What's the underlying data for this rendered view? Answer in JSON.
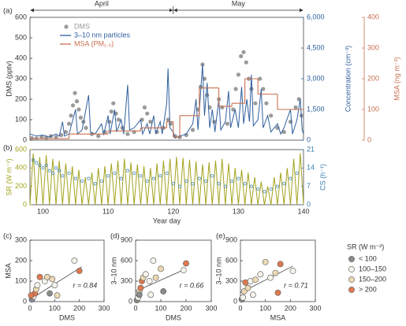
{
  "chart_data": [
    {
      "type": "line",
      "label": "(a)",
      "annotations": [
        "April",
        "May"
      ],
      "xlim": [
        98,
        140
      ],
      "ylim": [
        0,
        600
      ],
      "yticks": [
        0,
        100,
        200,
        300,
        400,
        500,
        600
      ],
      "ylabel": "DMS (pptv)",
      "y2lim": [
        0,
        6000
      ],
      "y2ticks": [
        0,
        {
          "value": 1500,
          "label": "1,500"
        },
        {
          "value": 3000,
          "label": "3,000"
        },
        {
          "value": 4500,
          "label": "4,500"
        },
        {
          "value": 6000,
          "label": "6,000"
        }
      ],
      "y2label": "Concentration (cm⁻³)",
      "y3lim": [
        0,
        400
      ],
      "y3ticks": [
        0,
        100,
        200,
        300,
        400
      ],
      "y3label": "MSA (ng m⁻³)",
      "series": [
        {
          "name": "DMS",
          "color": "#9a9a9a",
          "style": "points",
          "marker": "filled",
          "axis": "y",
          "x": [
            98.3,
            99,
            99.8,
            100.5,
            101.2,
            102,
            102.8,
            103.5,
            104,
            104.3,
            104.6,
            104.9,
            105.2,
            105.5,
            105.8,
            106.2,
            106.6,
            107.5,
            108.5,
            109.5,
            110.2,
            110.5,
            110.8,
            111.2,
            111.6,
            112.2,
            113,
            114,
            115.2,
            115.6,
            116,
            116.5,
            117.5,
            118.5,
            119.2,
            119.6,
            120.3,
            121,
            122,
            123,
            123.8,
            124.2,
            124.5,
            124.8,
            125.2,
            125.6,
            126.3,
            127,
            127.5,
            128.3,
            129.2,
            129.6,
            130,
            130.4,
            130.8,
            131.2,
            131.6,
            132,
            132.6,
            133.3,
            133.8,
            134.3,
            135,
            136,
            137,
            138,
            138.8,
            139.3,
            139.7
          ],
          "values": [
            10,
            8,
            15,
            12,
            20,
            15,
            25,
            40,
            80,
            120,
            170,
            230,
            190,
            150,
            110,
            90,
            60,
            30,
            20,
            40,
            90,
            140,
            180,
            130,
            100,
            60,
            30,
            40,
            100,
            160,
            130,
            90,
            40,
            60,
            100,
            80,
            20,
            15,
            25,
            50,
            150,
            260,
            370,
            300,
            220,
            160,
            90,
            200,
            160,
            80,
            150,
            250,
            320,
            410,
            430,
            380,
            300,
            250,
            180,
            300,
            250,
            180,
            120,
            60,
            40,
            90,
            160,
            200,
            120
          ]
        },
        {
          "name": "3–10 nm particles",
          "color": "#2f5f9e",
          "style": "line",
          "axis": "y2",
          "x": [
            98,
            99,
            100,
            101,
            102,
            102.5,
            103,
            103.3,
            104,
            105,
            105.3,
            106,
            107,
            107.3,
            108,
            109,
            109.3,
            110,
            110.3,
            111,
            111.3,
            112,
            112.4,
            113,
            113.3,
            114,
            115,
            115.3,
            116,
            116.4,
            117,
            117.3,
            118,
            118.3,
            119,
            119.2,
            119.5,
            120,
            120.3,
            121,
            122,
            123,
            123.5,
            123.8,
            124.5,
            124.8,
            125.2,
            125.6,
            126,
            126.4,
            127,
            127.3,
            128,
            128.5,
            128.8,
            129.5,
            130,
            130.5,
            130.8,
            131.3,
            131.7,
            132,
            132.3,
            133,
            133.5,
            133.8,
            134.5,
            135,
            136,
            136.5,
            137,
            138,
            138.3,
            139,
            139.5,
            139.8,
            140
          ],
          "values": [
            300,
            200,
            250,
            150,
            300,
            200,
            900,
            200,
            300,
            1500,
            300,
            500,
            2200,
            400,
            300,
            800,
            250,
            1200,
            300,
            1500,
            400,
            1000,
            300,
            2700,
            500,
            600,
            1000,
            300,
            800,
            300,
            1200,
            300,
            900,
            300,
            1800,
            3500,
            600,
            400,
            100,
            200,
            300,
            800,
            2000,
            500,
            3700,
            1200,
            2800,
            600,
            1500,
            400,
            2000,
            500,
            900,
            2400,
            600,
            1500,
            600,
            2600,
            800,
            2000,
            900,
            3200,
            700,
            1000,
            2500,
            600,
            1200,
            400,
            800,
            300,
            600,
            1500,
            300,
            1000,
            2000,
            500,
            300
          ]
        },
        {
          "name": "MSA (PM₁.₀)",
          "color": "#c8704f",
          "style": "steps",
          "axis": "y3",
          "x": [
            98,
            104,
            110,
            115,
            119,
            120,
            121,
            124,
            127,
            129,
            131,
            133,
            136
          ],
          "values": [
            5,
            20,
            30,
            40,
            60,
            10,
            80,
            170,
            110,
            120,
            200,
            150,
            100
          ]
        }
      ]
    },
    {
      "type": "line",
      "label": "(b)",
      "xlim": [
        98,
        140
      ],
      "xticks": [
        100,
        110,
        120,
        130,
        140
      ],
      "xlabel": "Year day",
      "ylim": [
        0,
        600
      ],
      "yticks": [
        0,
        200,
        400,
        600
      ],
      "ylabel": "SR (W m⁻²)",
      "y2lim": [
        0,
        21
      ],
      "y2ticks": [
        0,
        7,
        14,
        21
      ],
      "y2label": "CS (h⁻¹)",
      "series": [
        {
          "color": "#a3a31e",
          "style": "line",
          "axis": "y",
          "x": [
            98,
            98.5,
            99,
            99.5,
            100,
            100.5,
            101,
            101.5,
            102,
            102.5,
            103,
            103.5,
            104,
            104.5,
            105,
            105.5,
            106,
            106.5,
            107,
            107.5,
            108,
            108.5,
            109,
            109.5,
            110,
            110.5,
            111,
            111.5,
            112,
            112.5,
            113,
            113.5,
            114,
            114.5,
            115,
            115.5,
            116,
            116.5,
            117,
            117.5,
            118,
            118.5,
            119,
            119.5,
            120,
            120.5,
            121,
            121.5,
            122,
            122.5,
            123,
            123.5,
            124,
            124.5,
            125,
            125.5,
            126,
            126.5,
            127,
            127.5,
            128,
            128.5,
            129,
            129.5,
            130,
            130.5,
            131,
            131.5,
            132,
            132.5,
            133,
            133.5,
            134,
            134.5,
            135,
            135.5,
            136,
            136.5,
            137,
            137.5,
            138,
            138.5,
            139,
            139.5,
            140
          ],
          "values": [
            0,
            560,
            0,
            520,
            0,
            540,
            0,
            500,
            0,
            480,
            0,
            450,
            0,
            420,
            0,
            380,
            0,
            300,
            0,
            350,
            0,
            400,
            0,
            420,
            0,
            450,
            0,
            480,
            0,
            500,
            0,
            460,
            0,
            440,
            0,
            420,
            0,
            400,
            0,
            450,
            0,
            480,
            0,
            500,
            0,
            520,
            0,
            510,
            0,
            490,
            0,
            470,
            0,
            440,
            0,
            460,
            0,
            480,
            0,
            500,
            0,
            450,
            0,
            400,
            0,
            380,
            0,
            350,
            0,
            300,
            0,
            250,
            0,
            200,
            0,
            300,
            0,
            350,
            0,
            400,
            0,
            500,
            0,
            560,
            0
          ]
        },
        {
          "color": "#3a7fb0",
          "style": "points",
          "marker": "open",
          "axis": "y2",
          "x": [
            98.5,
            99,
            99.5,
            100,
            100.5,
            101,
            101.5,
            102,
            102.5,
            103,
            104,
            105,
            106,
            107,
            108,
            109,
            110,
            111,
            112,
            113,
            114,
            115,
            116,
            117,
            118,
            119,
            120,
            121,
            122,
            123,
            124,
            125,
            126,
            127,
            128,
            129,
            130,
            131,
            132,
            133,
            134,
            135,
            136,
            137,
            138,
            139
          ],
          "values": [
            17,
            16,
            15,
            14,
            15,
            13,
            12,
            14,
            13,
            11,
            12,
            10,
            9,
            10,
            8,
            9,
            11,
            12,
            10,
            13,
            12,
            11,
            9,
            10,
            11,
            12,
            8,
            7,
            9,
            8,
            10,
            9,
            11,
            8,
            7,
            9,
            10,
            8,
            7,
            6,
            5,
            6,
            7,
            8,
            10,
            12
          ]
        }
      ]
    },
    {
      "type": "scatter",
      "label": "(c)",
      "xlabel": "DMS",
      "ylabel": "MSA",
      "annotation": "r = 0.84",
      "xlim": [
        0,
        300
      ],
      "xticks": [
        0,
        100,
        200,
        300
      ],
      "ylim": [
        0,
        300
      ],
      "yticks": [
        0,
        100,
        200,
        300
      ],
      "x": [
        8,
        15,
        20,
        25,
        30,
        40,
        60,
        70,
        90,
        100,
        80,
        110,
        180,
        200,
        5
      ],
      "values": [
        10,
        25,
        40,
        60,
        80,
        120,
        100,
        120,
        110,
        80,
        40,
        30,
        200,
        150,
        30
      ],
      "colors": [
        "#8a8a8a",
        "#f5f3ea",
        "#e07a50",
        "#ecd9b5",
        "#f5f3ea",
        "#e07a50",
        "#f5f3ea",
        "#ecd9b5",
        "#ecd9b5",
        "#f5f3ea",
        "#8a8a8a",
        "#ecd9b5",
        "#f5f3ea",
        "#e07a50",
        "#e07a50"
      ],
      "fit": {
        "x": [
          0,
          210
        ],
        "values": [
          10,
          170
        ]
      }
    },
    {
      "type": "scatter",
      "label": "(d)",
      "xlabel": "DMS",
      "ylabel": "3–10 nm",
      "annotation": "r = 0.66",
      "xlim": [
        0,
        300
      ],
      "xticks": [
        0,
        100,
        200,
        300
      ],
      "ylim": [
        0,
        900
      ],
      "yticks": [
        0,
        300,
        600,
        900
      ],
      "x": [
        5,
        10,
        15,
        20,
        25,
        30,
        40,
        55,
        60,
        70,
        100,
        110,
        80,
        190,
        200,
        15
      ],
      "values": [
        20,
        60,
        150,
        200,
        300,
        350,
        400,
        300,
        100,
        600,
        480,
        150,
        350,
        460,
        560,
        100
      ],
      "colors": [
        "#8a8a8a",
        "#f5f3ea",
        "#ecd9b5",
        "#e07a50",
        "#e07a50",
        "#ecd9b5",
        "#f5f3ea",
        "#f5f3ea",
        "#f5f3ea",
        "#f5f3ea",
        "#ecd9b5",
        "#8a8a8a",
        "#ecd9b5",
        "#f5f3ea",
        "#e07a50",
        "#8a8a8a"
      ],
      "fit": {
        "x": [
          0,
          200
        ],
        "values": [
          150,
          480
        ]
      }
    },
    {
      "type": "scatter",
      "label": "(e)",
      "xlabel": "MSA",
      "ylabel": "3–10 nm",
      "annotation": "r = 0.71",
      "xlim": [
        0,
        300
      ],
      "xticks": [
        0,
        100,
        200,
        300
      ],
      "ylim": [
        0,
        900
      ],
      "yticks": [
        0,
        300,
        600,
        900
      ],
      "x": [
        5,
        10,
        15,
        20,
        40,
        60,
        80,
        100,
        120,
        140,
        160,
        150,
        210,
        50,
        30
      ],
      "values": [
        30,
        60,
        150,
        280,
        300,
        320,
        400,
        580,
        350,
        420,
        550,
        130,
        450,
        100,
        200
      ],
      "colors": [
        "#8a8a8a",
        "#f5f3ea",
        "#ecd9b5",
        "#e07a50",
        "#f5f3ea",
        "#ecd9b5",
        "#f5f3ea",
        "#ecd9b5",
        "#f5f3ea",
        "#ecd9b5",
        "#e07a50",
        "#e07a50",
        "#f5f3ea",
        "#f5f3ea",
        "#ecd9b5"
      ],
      "fit": {
        "x": [
          0,
          210
        ],
        "values": [
          130,
          520
        ]
      },
      "legend_title": "SR (W m⁻²)",
      "legend": [
        {
          "label": "< 100",
          "color": "#8a8a8a"
        },
        {
          "label": "100–150",
          "color": "#f5f3ea"
        },
        {
          "label": "150–200",
          "color": "#ecd9b5"
        },
        {
          "label": "> 200",
          "color": "#e07a50"
        }
      ]
    }
  ]
}
